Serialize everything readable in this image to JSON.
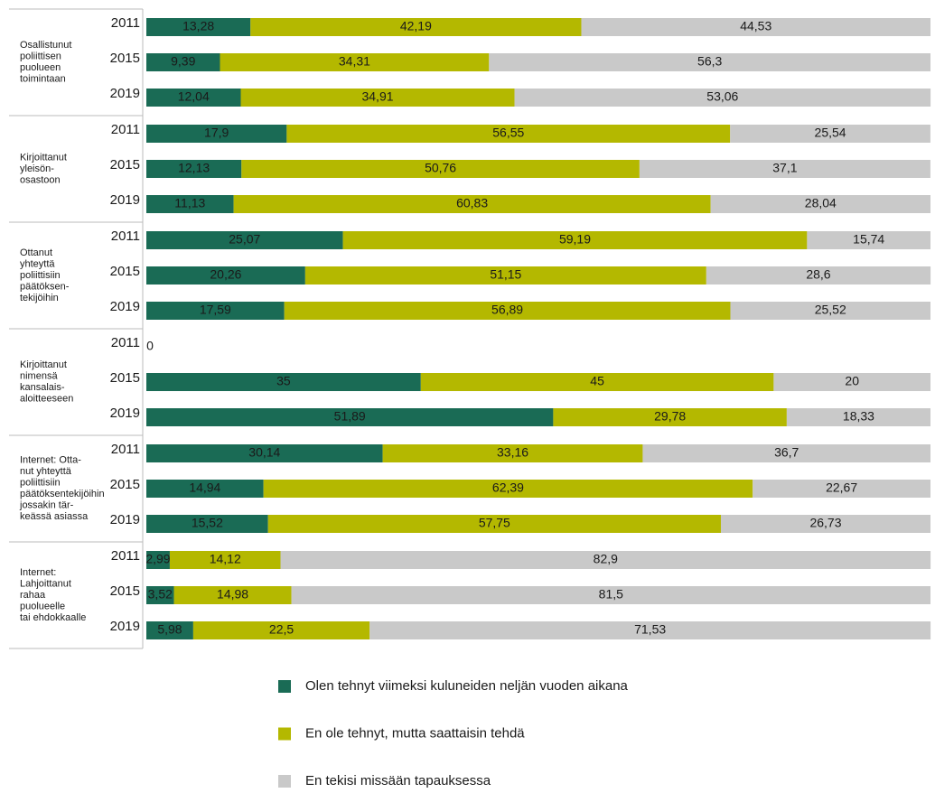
{
  "chart_data": {
    "type": "bar",
    "orientation": "horizontal",
    "stacked": true,
    "groups": [
      [
        "Osallistunut",
        "poliittisen",
        "puolueen",
        "toimintaan"
      ],
      [
        "Kirjoittanut",
        "yleisön-",
        "osastoon"
      ],
      [
        "Ottanut",
        "yhteyttä",
        "poliittisiin",
        "päätöksen-",
        "tekijöihin"
      ],
      [
        "Kirjoittanut",
        "nimensä",
        "kansalais-",
        "aloitteeseen"
      ],
      [
        "Internet: Otta-",
        "nut yhteyttä",
        "poliittisiin",
        "päätöksentekijöihin",
        "jossakin tär-",
        "keässä asiassa"
      ],
      [
        "Internet:",
        "Lahjoittanut",
        "rahaa",
        "puolueelle",
        "tai ehdokkaalle"
      ]
    ],
    "categories": [
      "2011",
      "2015",
      "2019",
      "2011",
      "2015",
      "2019",
      "2011",
      "2015",
      "2019",
      "2011",
      "2015",
      "2019",
      "2011",
      "2015",
      "2019",
      "2011",
      "2015",
      "2019"
    ],
    "xlim": [
      0,
      100
    ],
    "series": [
      {
        "name": "Olen tehnyt viimeksi kuluneiden neljän vuoden aikana",
        "color": "#1a6b55",
        "values": [
          13.28,
          9.39,
          12.04,
          17.9,
          12.13,
          11.13,
          25.07,
          20.26,
          17.59,
          0,
          35,
          51.89,
          30.14,
          14.94,
          15.52,
          2.99,
          3.52,
          5.98
        ],
        "value_labels": [
          "13,28",
          "9,39",
          "12,04",
          "17,9",
          "12,13",
          "11,13",
          "25,07",
          "20,26",
          "17,59",
          "0",
          "35",
          "51,89",
          "30,14",
          "14,94",
          "15,52",
          "2,99",
          "3,52",
          "5,98"
        ]
      },
      {
        "name": "En ole tehnyt, mutta saattaisin tehdä",
        "color": "#b4b800",
        "values": [
          42.19,
          34.31,
          34.91,
          56.55,
          50.76,
          60.83,
          59.19,
          51.15,
          56.89,
          null,
          45,
          29.78,
          33.16,
          62.39,
          57.75,
          14.12,
          14.98,
          22.5
        ],
        "value_labels": [
          "42,19",
          "34,31",
          "34,91",
          "56,55",
          "50,76",
          "60,83",
          "59,19",
          "51,15",
          "56,89",
          null,
          "45",
          "29,78",
          "33,16",
          "62,39",
          "57,75",
          "14,12",
          "14,98",
          "22,5"
        ]
      },
      {
        "name": "En tekisi missään tapauksessa",
        "color": "#c9c9c9",
        "values": [
          44.53,
          56.3,
          53.06,
          25.54,
          37.1,
          28.04,
          15.74,
          28.6,
          25.52,
          null,
          20,
          18.33,
          36.7,
          22.67,
          26.73,
          82.9,
          81.5,
          71.53
        ],
        "value_labels": [
          "44,53",
          "56,3",
          "53,06",
          "25,54",
          "37,1",
          "28,04",
          "15,74",
          "28,6",
          "25,52",
          null,
          "20",
          "18,33",
          "36,7",
          "22,67",
          "26,73",
          "82,9",
          "81,5",
          "71,53"
        ]
      }
    ]
  }
}
